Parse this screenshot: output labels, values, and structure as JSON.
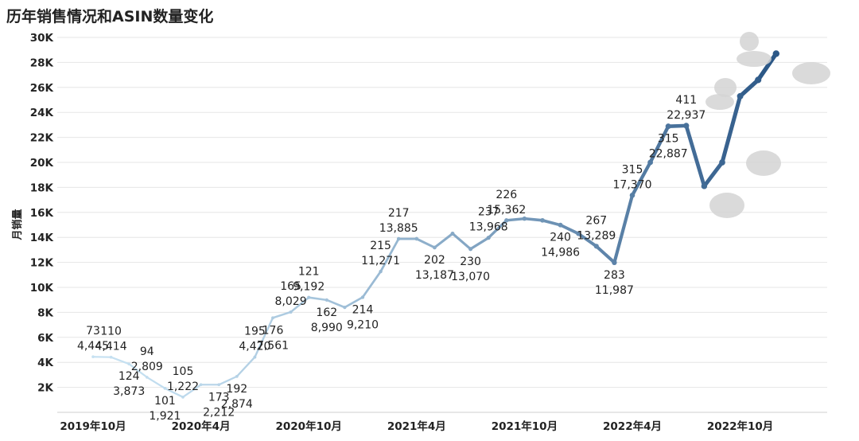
{
  "chart_data": {
    "type": "line",
    "title": "历年销售情况和ASIN数量变化",
    "ylabel": "月销量",
    "xlabel": "",
    "ylim": [
      0,
      30000
    ],
    "yticks": [
      {
        "value": 2000,
        "label": "2K"
      },
      {
        "value": 4000,
        "label": "4K"
      },
      {
        "value": 6000,
        "label": "6K"
      },
      {
        "value": 8000,
        "label": "8K"
      },
      {
        "value": 10000,
        "label": "10K"
      },
      {
        "value": 12000,
        "label": "12K"
      },
      {
        "value": 14000,
        "label": "14K"
      },
      {
        "value": 16000,
        "label": "16K"
      },
      {
        "value": 18000,
        "label": "18K"
      },
      {
        "value": 20000,
        "label": "20K"
      },
      {
        "value": 22000,
        "label": "22K"
      },
      {
        "value": 24000,
        "label": "24K"
      },
      {
        "value": 26000,
        "label": "26K"
      },
      {
        "value": 28000,
        "label": "28K"
      },
      {
        "value": 30000,
        "label": "30K"
      }
    ],
    "xticks": [
      {
        "index": 0,
        "label": "2019年10月"
      },
      {
        "index": 6,
        "label": "2020年4月"
      },
      {
        "index": 12,
        "label": "2020年10月"
      },
      {
        "index": 18,
        "label": "2021年4月"
      },
      {
        "index": 24,
        "label": "2021年10月"
      },
      {
        "index": 30,
        "label": "2022年4月"
      },
      {
        "index": 36,
        "label": "2022年10月"
      }
    ],
    "series": [
      {
        "name": "月销量",
        "values": [
          4445,
          4414,
          3873,
          2809,
          1921,
          1222,
          2212,
          2212,
          2874,
          4420,
          7561,
          8029,
          9192,
          8990,
          8400,
          9210,
          11271,
          13885,
          13885,
          13187,
          14300,
          13070,
          13968,
          15362,
          15500,
          15362,
          14986,
          14300,
          13289,
          11987,
          17370,
          20000,
          22887,
          22937,
          18100,
          20000,
          25300,
          26600,
          28700
        ]
      }
    ],
    "data_labels": [
      {
        "i": 0,
        "asin": "73",
        "sales": "4,445",
        "pos": "above"
      },
      {
        "i": 1,
        "asin": "110",
        "sales": "4,414",
        "pos": "above"
      },
      {
        "i": 2,
        "asin": "124",
        "sales": "3,873",
        "pos": "below"
      },
      {
        "i": 3,
        "asin": "94",
        "sales": "2,809",
        "pos": "above"
      },
      {
        "i": 4,
        "asin": "101",
        "sales": "1,921",
        "pos": "below"
      },
      {
        "i": 5,
        "asin": "105",
        "sales": "1,222",
        "pos": "above"
      },
      {
        "i": 7,
        "asin": "173",
        "sales": "2,212",
        "pos": "below"
      },
      {
        "i": 8,
        "asin": "192",
        "sales": "2,874",
        "pos": "below"
      },
      {
        "i": 9,
        "asin": "195",
        "sales": "4,420",
        "pos": "above"
      },
      {
        "i": 10,
        "asin": "176",
        "sales": "7,561",
        "pos": "below"
      },
      {
        "i": 11,
        "asin": "165",
        "sales": "8,029",
        "pos": "above"
      },
      {
        "i": 12,
        "asin": "121",
        "sales": "9,192",
        "pos": "above"
      },
      {
        "i": 13,
        "asin": "162",
        "sales": "8,990",
        "pos": "below"
      },
      {
        "i": 15,
        "asin": "214",
        "sales": "9,210",
        "pos": "below"
      },
      {
        "i": 16,
        "asin": "215",
        "sales": "11,271",
        "pos": "above"
      },
      {
        "i": 17,
        "asin": "217",
        "sales": "13,885",
        "pos": "above"
      },
      {
        "i": 19,
        "asin": "202",
        "sales": "13,187",
        "pos": "below"
      },
      {
        "i": 21,
        "asin": "230",
        "sales": "13,070",
        "pos": "below"
      },
      {
        "i": 22,
        "asin": "237",
        "sales": "13,968",
        "pos": "above"
      },
      {
        "i": 23,
        "asin": "226",
        "sales": "15,362",
        "pos": "above"
      },
      {
        "i": 26,
        "asin": "240",
        "sales": "14,986",
        "pos": "below"
      },
      {
        "i": 28,
        "asin": "267",
        "sales": "13,289",
        "pos": "above"
      },
      {
        "i": 29,
        "asin": "283",
        "sales": "11,987",
        "pos": "below"
      },
      {
        "i": 30,
        "asin": "315",
        "sales": "17,370",
        "pos": "above"
      },
      {
        "i": 32,
        "asin": "315",
        "sales": "22,887",
        "pos": "below"
      },
      {
        "i": 33,
        "asin": "411",
        "sales": "22,937",
        "pos": "above"
      }
    ]
  }
}
